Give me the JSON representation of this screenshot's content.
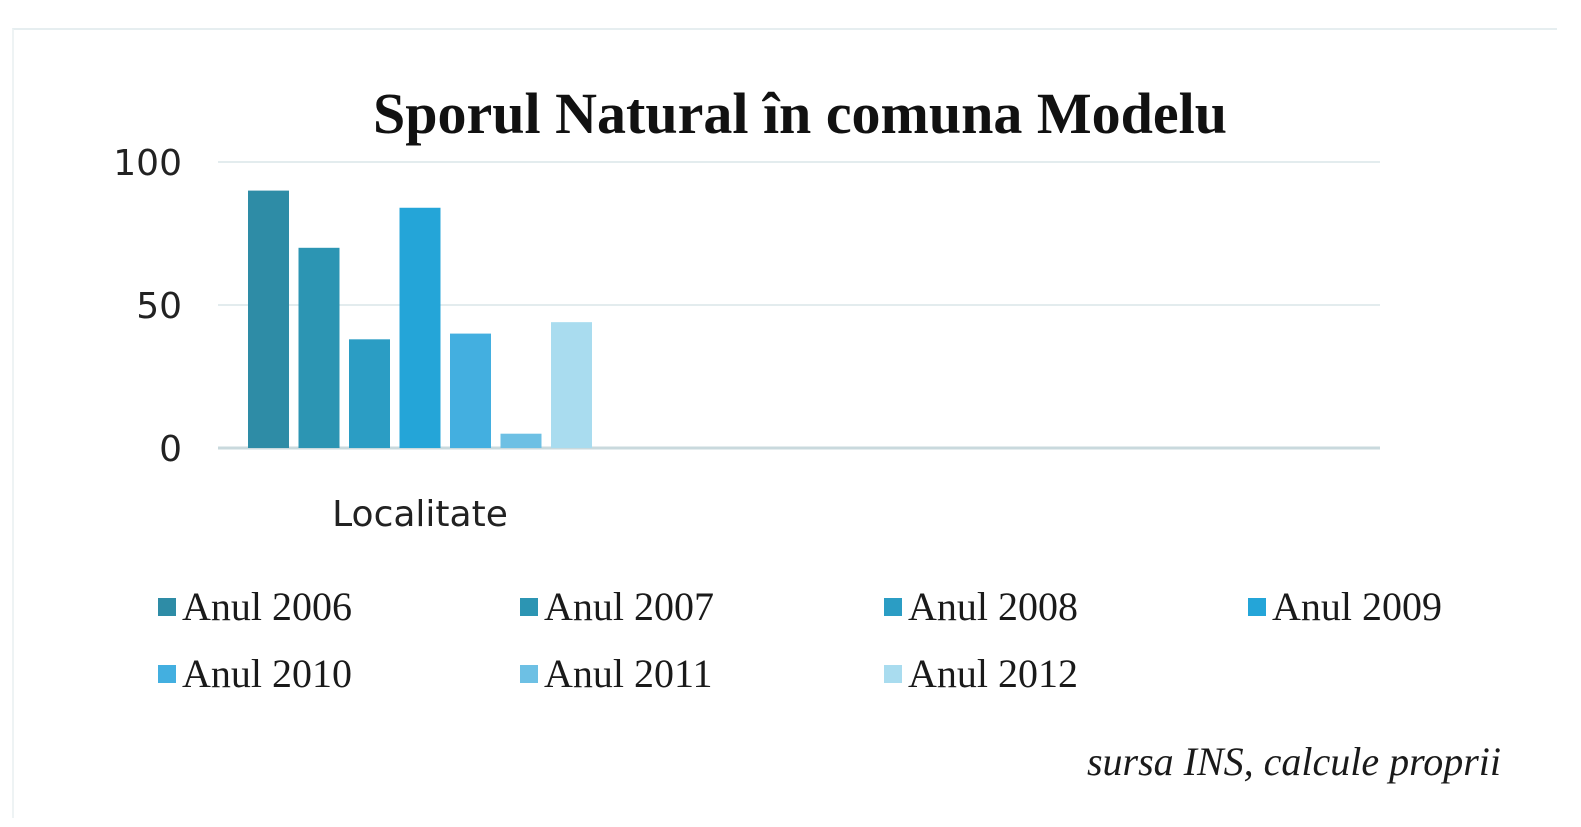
{
  "chart_data": {
    "type": "bar",
    "title": "Sporul Natural în comuna Modelu",
    "categories": [
      "Localitate"
    ],
    "series": [
      {
        "name": "Anul 2006",
        "values": [
          90
        ],
        "color": "#2e8ca6"
      },
      {
        "name": "Anul 2007",
        "values": [
          70
        ],
        "color": "#2c95b3"
      },
      {
        "name": "Anul 2008",
        "values": [
          38
        ],
        "color": "#2b9dc4"
      },
      {
        "name": "Anul 2009",
        "values": [
          84
        ],
        "color": "#24a5d8"
      },
      {
        "name": "Anul 2010",
        "values": [
          40
        ],
        "color": "#43afe0"
      },
      {
        "name": "Anul 2011",
        "values": [
          5
        ],
        "color": "#6dc0e4"
      },
      {
        "name": "Anul 2012",
        "values": [
          44
        ],
        "color": "#a9dcef"
      }
    ],
    "yticks": [
      "0",
      "50",
      "100"
    ],
    "ylim": [
      0,
      100
    ],
    "grid": true,
    "legend_position": "bottom"
  },
  "source_note": "sursa INS, calcule proprii"
}
